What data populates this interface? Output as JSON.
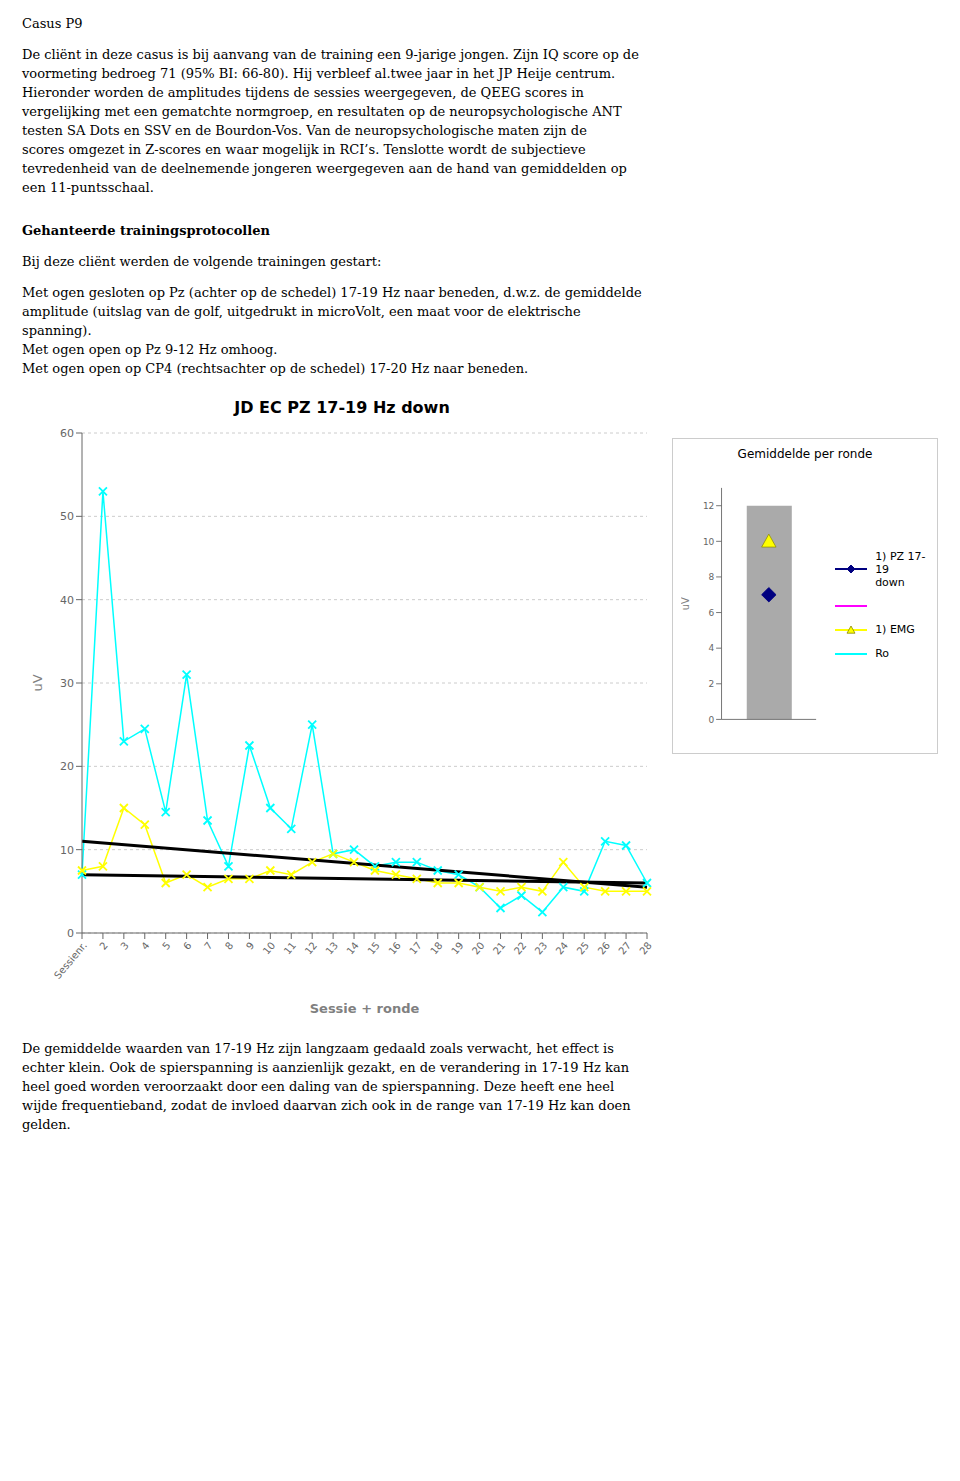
{
  "page": {
    "title": "Casus P9",
    "lines_above": [
      "De cliënt in deze casus is bij aanvang van de training een 9-jarige jongen. Zijn IQ score op de",
      "voormeting bedroeg 71 (95% BI: 66-80). Hij verbleef al.twee jaar in het JP Heije centrum.",
      "Hieronder worden de amplitudes tijdens de sessies weergegeven, de QEEG scores in",
      "vergelijking met een gematchte normgroep, en resultaten op de neuropsychologische ANT",
      "testen SA Dots en SSV en de Bourdon-Vos. Van de neuropsychologische maten zijn de",
      "scores omgezet in Z-scores en waar mogelijk in RCI’s. Tenslotte wordt de subjectieve",
      "tevredenheid van de deelnemende jongeren weergegeven aan de hand van gemiddelden op",
      "een 11-puntsschaal."
    ],
    "heading": "Gehanteerde trainingsprotocollen",
    "lines_after_heading": [
      "Bij deze cliënt werden de volgende trainingen gestart:"
    ],
    "protocol_lines": [
      "Met ogen gesloten op Pz (achter op de schedel) 17-19 Hz naar beneden, d.w.z. de gemiddelde",
      "amplitude (uitslag van de golf, uitgedrukt in microVolt, een maat voor de elektrische",
      "spanning).",
      "Met ogen open op Pz 9-12 Hz omhoog.",
      "Met ogen open op CP4 (rechtsachter op de schedel) 17-20 Hz naar beneden."
    ],
    "lines_below": [
      "De gemiddelde waarden van 17-19 Hz zijn langzaam gedaald zoals verwacht, het effect is",
      "echter klein. Ook de spierspanning is aanzienlijk gezakt, en de verandering in 17-19 Hz kan",
      "heel goed worden veroorzaakt door een daling van de spierspanning. Deze heeft ene heel",
      "wijde frequentieband, zodat de invloed daarvan zich ook in de range van 17-19 Hz kan doen",
      "gelden."
    ]
  },
  "chart_data": [
    {
      "type": "line",
      "title": "JD EC PZ 17-19 Hz down",
      "xlabel": "Sessie + ronde",
      "ylabel": "uV",
      "categories": [
        "Sessienr.",
        "2",
        "3",
        "4",
        "5",
        "6",
        "7",
        "8",
        "9",
        "10",
        "11",
        "12",
        "13",
        "14",
        "15",
        "16",
        "17",
        "18",
        "19",
        "20",
        "21",
        "22",
        "23",
        "24",
        "25",
        "26",
        "27",
        "28"
      ],
      "series": [
        {
          "color": "#00ffff",
          "marker": "x",
          "values": [
            7.0,
            53.0,
            23.0,
            24.5,
            14.5,
            31.0,
            13.5,
            8.0,
            22.5,
            15.0,
            12.5,
            25.0,
            9.5,
            10.0,
            8.0,
            8.5,
            8.5,
            7.5,
            7.0,
            5.5,
            3.0,
            4.5,
            2.5,
            5.5,
            5.0,
            11.0,
            10.5,
            6.0
          ]
        },
        {
          "color": "#ffff00",
          "marker": "x",
          "values": [
            7.5,
            8.0,
            15.0,
            13.0,
            6.0,
            7.0,
            5.5,
            6.5,
            6.5,
            7.5,
            7.0,
            8.5,
            9.5,
            8.5,
            7.5,
            7.0,
            6.5,
            6.0,
            6.0,
            5.5,
            5.0,
            5.5,
            5.0,
            8.5,
            5.5,
            5.0,
            5.0,
            5.0
          ]
        },
        {
          "color": "#000000",
          "x": [
            "Sessienr.",
            "28"
          ],
          "values": [
            11.0,
            5.5
          ]
        },
        {
          "color": "#000000",
          "x": [
            "Sessienr.",
            "28"
          ],
          "values": [
            7.0,
            6.0
          ]
        }
      ],
      "ylim": [
        0,
        60
      ],
      "yticks": [
        0,
        10,
        20,
        30,
        40,
        50,
        60
      ],
      "grid": true
    },
    {
      "type": "bar",
      "title": "Gemiddelde per ronde",
      "ylabel": "uV",
      "categories": [
        null
      ],
      "series": [
        {
          "type": "bar",
          "color": "#aaaaaa",
          "values": [
            12
          ]
        },
        {
          "type": "scatter",
          "name": "1) PZ 17-19\ndown",
          "color": "#000080",
          "marker": "diamond",
          "values": [
            7.0
          ]
        },
        {
          "type": "line",
          "color": "#ff00ff",
          "values": [
            null
          ]
        },
        {
          "type": "scatter",
          "name": "1) EMG",
          "color": "#ffff00",
          "marker": "triangle",
          "values": [
            10.0
          ]
        },
        {
          "type": "line",
          "name": "Ro",
          "color": "#00ffff",
          "values": [
            null
          ]
        }
      ],
      "ylim": [
        0,
        13
      ],
      "yticks": [
        0,
        2,
        4,
        6,
        8,
        10,
        12
      ],
      "tick_labels": "y",
      "legend": "right"
    }
  ]
}
